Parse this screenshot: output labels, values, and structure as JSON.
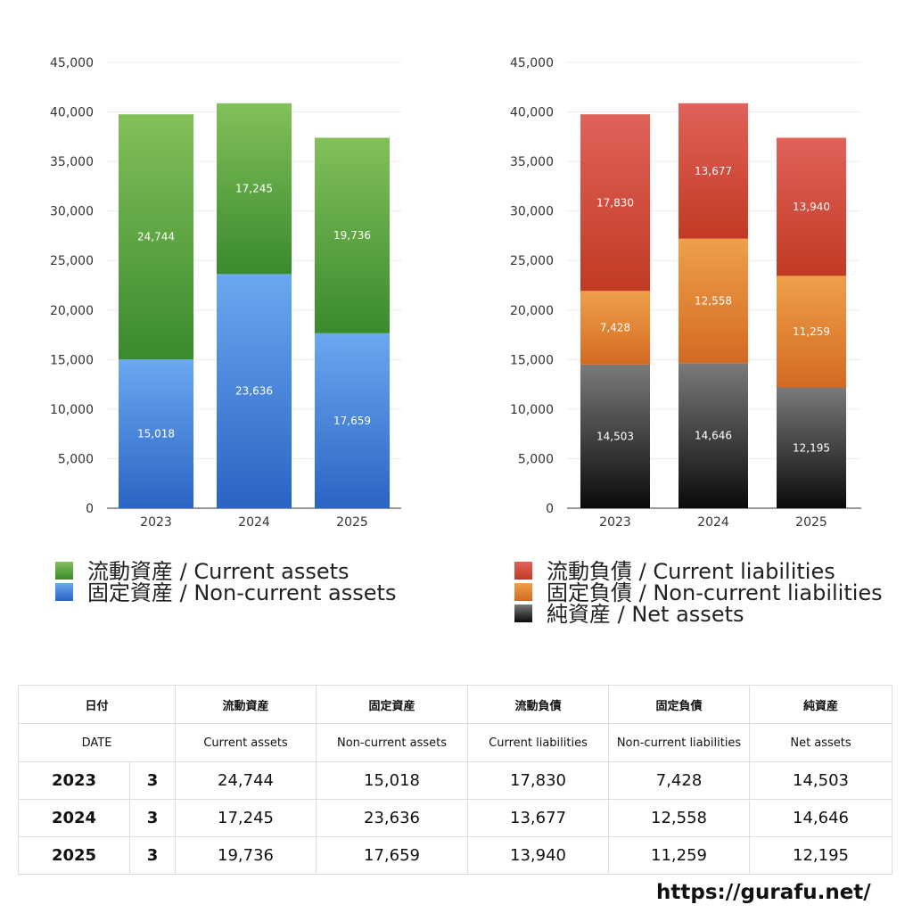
{
  "chart_data": [
    {
      "type": "bar",
      "stacked": true,
      "categories": [
        "2023",
        "2024",
        "2025"
      ],
      "ylim": [
        0,
        45000
      ],
      "yticks": [
        0,
        5000,
        10000,
        15000,
        20000,
        25000,
        30000,
        35000,
        40000,
        45000
      ],
      "ytick_labels": [
        "0",
        "5,000",
        "10,000",
        "15,000",
        "20,000",
        "25,000",
        "30,000",
        "35,000",
        "40,000",
        "45,000"
      ],
      "grid": true,
      "legend_position": "bottom",
      "series": [
        {
          "name": "固定資産 / Non-current assets",
          "values": [
            15018,
            23636,
            17659
          ],
          "labels": [
            "15,018",
            "23,636",
            "17,659"
          ],
          "color_top": "#6aa8f0",
          "color_bottom": "#2a64c4"
        },
        {
          "name": "流動資産 / Current assets",
          "values": [
            24744,
            17245,
            19736
          ],
          "labels": [
            "24,744",
            "17,245",
            "19,736"
          ],
          "color_top": "#83c05a",
          "color_bottom": "#3a8a2e"
        }
      ],
      "legend_order": [
        1,
        0
      ]
    },
    {
      "type": "bar",
      "stacked": true,
      "categories": [
        "2023",
        "2024",
        "2025"
      ],
      "ylim": [
        0,
        45000
      ],
      "yticks": [
        0,
        5000,
        10000,
        15000,
        20000,
        25000,
        30000,
        35000,
        40000,
        45000
      ],
      "ytick_labels": [
        "0",
        "5,000",
        "10,000",
        "15,000",
        "20,000",
        "25,000",
        "30,000",
        "35,000",
        "40,000",
        "45,000"
      ],
      "grid": true,
      "legend_position": "bottom",
      "series": [
        {
          "name": "純資産 / Net assets",
          "values": [
            14503,
            14646,
            12195
          ],
          "labels": [
            "14,503",
            "14,646",
            "12,195"
          ],
          "color_top": "#7a7a7a",
          "color_bottom": "#0a0a0a"
        },
        {
          "name": "固定負債 / Non-current liabilities",
          "values": [
            7428,
            12558,
            11259
          ],
          "labels": [
            "7,428",
            "12,558",
            "11,259"
          ],
          "color_top": "#eea04a",
          "color_bottom": "#d46a22"
        },
        {
          "name": "流動負債 / Current liabilities",
          "values": [
            17830,
            13677,
            13940
          ],
          "labels": [
            "17,830",
            "13,677",
            "13,940"
          ],
          "color_top": "#e0625a",
          "color_bottom": "#c23a24"
        }
      ],
      "legend_order": [
        2,
        1,
        0
      ]
    }
  ],
  "table": {
    "header_ja": [
      "日付",
      "流動資産",
      "固定資産",
      "流動負債",
      "固定負債",
      "純資産"
    ],
    "header_en": [
      "DATE",
      "Current assets",
      "Non-current assets",
      "Current liabilities",
      "Non-current liabilities",
      "Net assets"
    ],
    "rows": [
      {
        "year": "2023",
        "month": "3",
        "values": [
          "24,744",
          "15,018",
          "17,830",
          "7,428",
          "14,503"
        ]
      },
      {
        "year": "2024",
        "month": "3",
        "values": [
          "17,245",
          "23,636",
          "13,677",
          "12,558",
          "14,646"
        ]
      },
      {
        "year": "2025",
        "month": "3",
        "values": [
          "19,736",
          "17,659",
          "13,940",
          "11,259",
          "12,195"
        ]
      }
    ]
  },
  "site": {
    "url": "https://gurafu.net/"
  }
}
